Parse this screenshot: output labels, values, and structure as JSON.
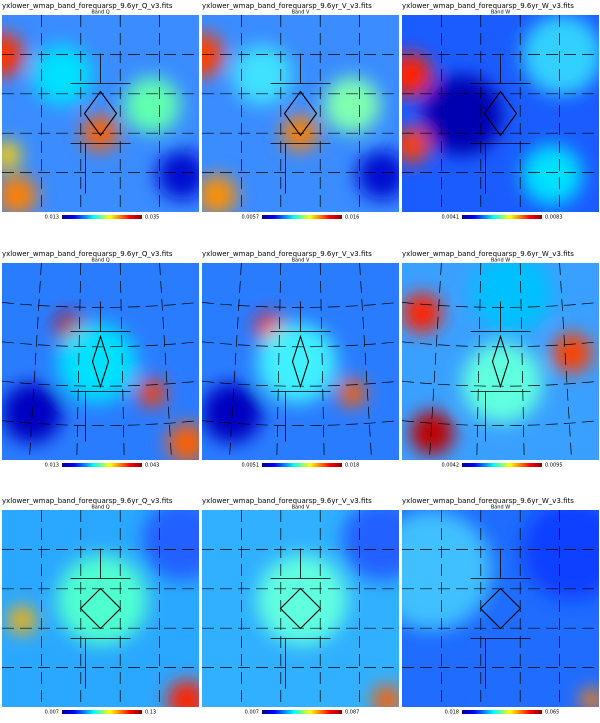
{
  "panels": [
    {
      "title": "yxlower_wmap_band_forequarsp_9.6yr_Q_v3.fits",
      "subtitle": "Band Q",
      "colorbar_labels": [
        "0.013",
        "0.035"
      ]
    },
    {
      "title": "yxlower_wmap_band_forequarsp_9.6yr_V_v3.fits",
      "subtitle": "Band V",
      "colorbar_labels": [
        "0.0057",
        "0.016"
      ]
    },
    {
      "title": "yxlower_wmap_band_forequarsp_9.6yr_W_v3.fits",
      "subtitle": "Band W",
      "colorbar_labels": [
        "0.0041",
        "0.0083"
      ]
    },
    {
      "title": "yxlower_wmap_band_forequarsp_9.6yr_Q_v3.fits",
      "subtitle": "Band Q",
      "colorbar_labels": [
        "0.013",
        "0.043"
      ]
    },
    {
      "title": "yxlower_wmap_band_forequarsp_9.6yr_V_v3.fits",
      "subtitle": "Band V",
      "colorbar_labels": [
        "0.0051",
        "0.018"
      ]
    },
    {
      "title": "yxlower_wmap_band_forequarsp_9.6yr_W_v3.fits",
      "subtitle": "Band W",
      "colorbar_labels": [
        "0.0042",
        "0.0095"
      ]
    },
    {
      "title": "yxlower_wmap_band_forequarsp_9.6yr_Q_v3.fits",
      "subtitle": "Band Q",
      "colorbar_labels": [
        "0.007",
        "0.13"
      ]
    },
    {
      "title": "yxlower_wmap_band_forequarsp_9.6yr_V_v3.fits",
      "subtitle": "Band V",
      "colorbar_labels": [
        "0.007",
        "0.087"
      ]
    },
    {
      "title": "yxlower_wmap_band_forequarsp_9.6yr_W_v3.fits",
      "subtitle": "Band W",
      "colorbar_labels": [
        "0.018",
        "0.065"
      ]
    }
  ]
}
